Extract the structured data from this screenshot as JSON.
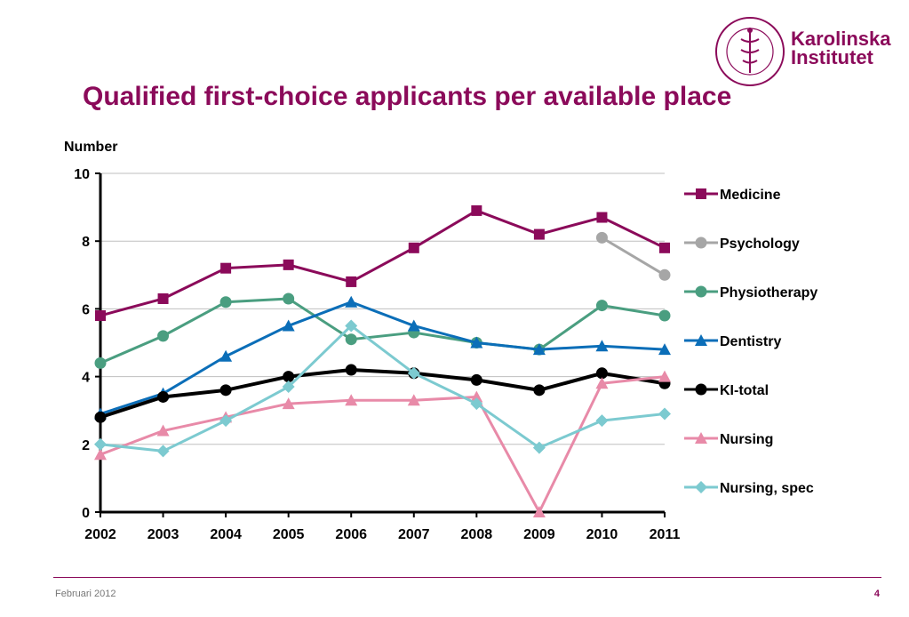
{
  "slide": {
    "title": "Qualified first-choice applicants per available place",
    "logo_line1": "Karolinska",
    "logo_line2": "Institutet",
    "footer_left": "Februari 2012",
    "page_number": "4",
    "brand_color": "#8b0a5a"
  },
  "chart_data": {
    "type": "line",
    "title": "Qualified first-choice applicants per available place",
    "ylabel": "Number",
    "xlabel": "",
    "ylim": [
      0,
      10
    ],
    "yticks": [
      0,
      2,
      4,
      6,
      8,
      10
    ],
    "grid": true,
    "legend_position": "right",
    "categories": [
      "2002",
      "2003",
      "2004",
      "2005",
      "2006",
      "2007",
      "2008",
      "2009",
      "2010",
      "2011"
    ],
    "series": [
      {
        "name": "Medicine",
        "color": "#8b0a5a",
        "marker": "square",
        "values": [
          5.8,
          6.3,
          7.2,
          7.3,
          6.8,
          7.8,
          8.9,
          8.2,
          8.7,
          7.8
        ]
      },
      {
        "name": "Psychology",
        "color": "#a6a6a6",
        "marker": "circle",
        "values": [
          null,
          null,
          null,
          null,
          null,
          null,
          null,
          null,
          8.1,
          7.0
        ]
      },
      {
        "name": "Physiotherapy",
        "color": "#4a9e80",
        "marker": "circle",
        "values": [
          4.4,
          5.2,
          6.2,
          6.3,
          5.1,
          5.3,
          5.0,
          4.8,
          6.1,
          5.8
        ]
      },
      {
        "name": "Dentistry",
        "color": "#0b6eb8",
        "marker": "triangle",
        "values": [
          2.9,
          3.5,
          4.6,
          5.5,
          6.2,
          5.5,
          5.0,
          4.8,
          4.9,
          4.8
        ]
      },
      {
        "name": "KI-total",
        "color": "#000000",
        "marker": "circle",
        "values": [
          2.8,
          3.4,
          3.6,
          4.0,
          4.2,
          4.1,
          3.9,
          3.6,
          4.1,
          3.8
        ]
      },
      {
        "name": "Nursing",
        "color": "#e88aa8",
        "marker": "triangle",
        "values": [
          1.7,
          2.4,
          2.8,
          3.2,
          3.3,
          3.3,
          3.4,
          0.0,
          3.8,
          4.0
        ]
      },
      {
        "name": "Nursing, spec",
        "color": "#7ccad0",
        "marker": "diamond",
        "values": [
          2.0,
          1.8,
          2.7,
          3.7,
          5.5,
          4.1,
          3.2,
          1.9,
          2.7,
          2.9
        ]
      }
    ]
  }
}
